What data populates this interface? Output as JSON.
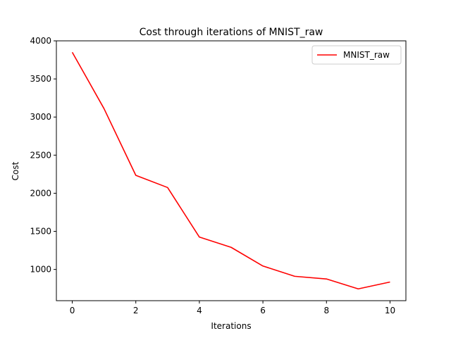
{
  "chart_data": {
    "type": "line",
    "title": "Cost through iterations of MNIST_raw",
    "xlabel": "Iterations",
    "ylabel": "Cost",
    "xlim": [
      -0.5,
      10.5
    ],
    "ylim": [
      590,
      4000
    ],
    "xticks": [
      0,
      2,
      4,
      6,
      8,
      10
    ],
    "yticks": [
      1000,
      1500,
      2000,
      2500,
      3000,
      3500,
      4000
    ],
    "grid": false,
    "legend_position": "top-right",
    "series": [
      {
        "name": "MNIST_raw",
        "color": "#ff0000",
        "x": [
          0,
          1,
          2,
          3,
          4,
          5,
          6,
          7,
          8,
          9,
          10
        ],
        "y": [
          3850,
          3110,
          2235,
          2075,
          1425,
          1290,
          1045,
          910,
          875,
          745,
          835
        ]
      }
    ]
  }
}
